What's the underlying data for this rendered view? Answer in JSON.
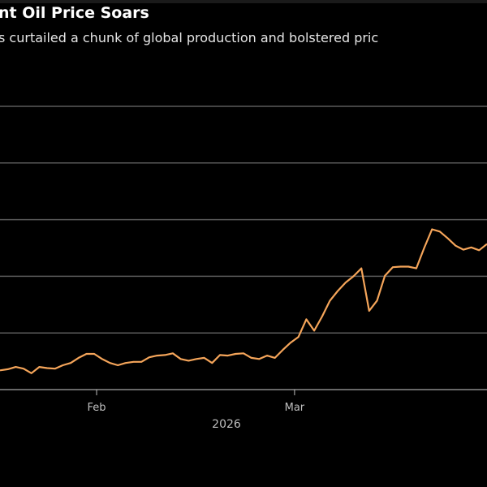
{
  "title": "nt Oil Price Soars",
  "subtitle": "s curtailed a chunk of global production and bolstered pric",
  "chart_data": {
    "type": "line",
    "title": "nt Oil Price Soars",
    "subtitle": "s curtailed a chunk of global production and bolstered pric",
    "xlabel": "2026",
    "ylabel": "",
    "x_ticks": [
      {
        "label": "Feb",
        "index": 12.3
      },
      {
        "label": "Mar",
        "index": 37.5
      }
    ],
    "ylim": [
      0,
      5
    ],
    "gridlines": 5,
    "grid": true,
    "line_color": "#f5a55a",
    "background": "#000000",
    "series": [
      {
        "values": [
          0.34,
          0.36,
          0.4,
          0.37,
          0.29,
          0.4,
          0.38,
          0.37,
          0.43,
          0.47,
          0.56,
          0.63,
          0.63,
          0.54,
          0.47,
          0.43,
          0.47,
          0.49,
          0.49,
          0.57,
          0.6,
          0.61,
          0.64,
          0.54,
          0.51,
          0.54,
          0.56,
          0.47,
          0.61,
          0.6,
          0.63,
          0.64,
          0.56,
          0.54,
          0.6,
          0.56,
          0.7,
          0.83,
          0.93,
          1.24,
          1.04,
          1.29,
          1.57,
          1.74,
          1.89,
          2.0,
          2.14,
          1.39,
          1.57,
          2.01,
          2.16,
          2.17,
          2.17,
          2.14,
          2.5,
          2.83,
          2.79,
          2.67,
          2.54,
          2.47,
          2.51,
          2.46,
          2.57
        ]
      }
    ]
  }
}
